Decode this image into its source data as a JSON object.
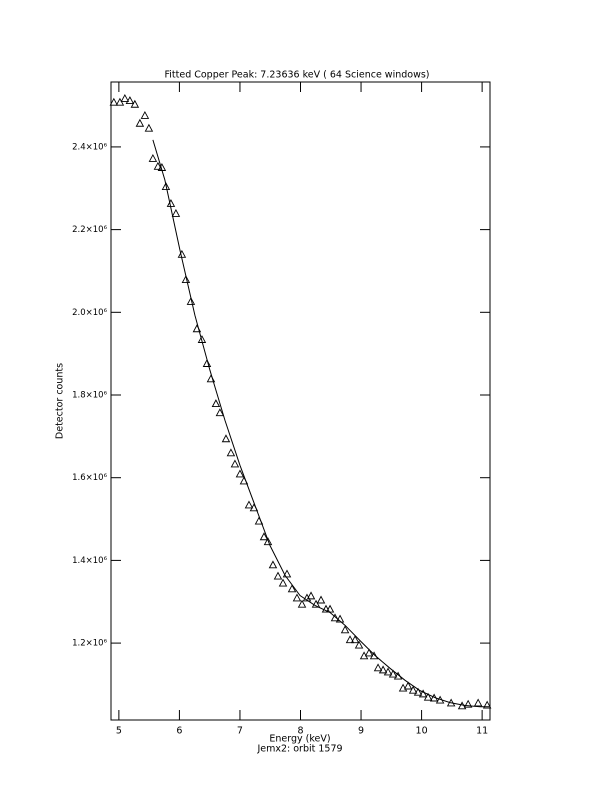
{
  "chart_data": {
    "type": "scatter",
    "title": "Fitted Copper Peak:       7.23636 keV (      64 Science windows)",
    "x_label": "Energy (keV)",
    "subtitle": "Jemx2: orbit 1579",
    "y_label": "Detector counts",
    "xlim": [
      4.87,
      11.13
    ],
    "ylim": [
      1014000,
      2557000
    ],
    "xticks": [
      5,
      6,
      7,
      8,
      9,
      10,
      11
    ],
    "yticks": [
      {
        "value": 1200000,
        "label": "1.2×10⁶"
      },
      {
        "value": 1400000,
        "label": "1.4×10⁶"
      },
      {
        "value": 1600000,
        "label": "1.6×10⁶"
      },
      {
        "value": 1800000,
        "label": "1.8×10⁶"
      },
      {
        "value": 2000000,
        "label": "2.0×10⁶"
      },
      {
        "value": 2200000,
        "label": "2.2×10⁶"
      },
      {
        "value": 2400000,
        "label": "2.4×10⁶"
      }
    ],
    "series": [
      {
        "marker": "triangle",
        "color": "#000000",
        "x": [
          4.917,
          5.017,
          5.099,
          5.182,
          5.264,
          5.347,
          5.43,
          5.496,
          5.562,
          5.645,
          5.711,
          5.777,
          5.86,
          5.942,
          6.041,
          6.107,
          6.19,
          6.289,
          6.372,
          6.455,
          6.521,
          6.603,
          6.669,
          6.769,
          6.851,
          6.917,
          7.0,
          7.066,
          7.149,
          7.231,
          7.314,
          7.397,
          7.463,
          7.545,
          7.628,
          7.711,
          7.777,
          7.86,
          7.942,
          8.025,
          8.107,
          8.174,
          8.256,
          8.339,
          8.421,
          8.488,
          8.57,
          8.653,
          8.736,
          8.818,
          8.901,
          8.967,
          9.05,
          9.132,
          9.215,
          9.281,
          9.364,
          9.446,
          9.529,
          9.612,
          9.694,
          9.777,
          9.86,
          9.942,
          10.025,
          10.107,
          10.207,
          10.306,
          10.488,
          10.669,
          10.769,
          10.934,
          11.083
        ],
        "values": [
          2507000,
          2507000,
          2516000,
          2511000,
          2502000,
          2456000,
          2475000,
          2444000,
          2371000,
          2352000,
          2349000,
          2303000,
          2262000,
          2238000,
          2139000,
          2078000,
          2025000,
          1959000,
          1933000,
          1875000,
          1838000,
          1778000,
          1756000,
          1693000,
          1659000,
          1632000,
          1608000,
          1591000,
          1533000,
          1526000,
          1494000,
          1456000,
          1444000,
          1388000,
          1361000,
          1344000,
          1366000,
          1330000,
          1308000,
          1293000,
          1308000,
          1313000,
          1293000,
          1303000,
          1281000,
          1281000,
          1260000,
          1257000,
          1231000,
          1207000,
          1207000,
          1194000,
          1168000,
          1175000,
          1168000,
          1139000,
          1134000,
          1129000,
          1124000,
          1119000,
          1090000,
          1095000,
          1085000,
          1080000,
          1076000,
          1068000,
          1066000,
          1061000,
          1054000,
          1047000,
          1051000,
          1054000,
          1049000
        ]
      },
      {
        "marker": "line",
        "color": "#000000",
        "x": [
          5.562,
          5.76,
          6.008,
          6.256,
          6.504,
          6.752,
          7.0,
          7.248,
          7.496,
          7.744,
          7.992,
          8.24,
          8.488,
          8.736,
          8.983,
          9.231,
          9.479,
          9.727,
          9.975,
          10.223,
          10.471,
          10.719,
          10.967,
          11.12
        ],
        "values": [
          2417000,
          2320000,
          2151000,
          1993000,
          1860000,
          1739000,
          1630000,
          1533000,
          1436000,
          1364000,
          1315000,
          1291000,
          1274000,
          1243000,
          1206000,
          1170000,
          1139000,
          1110000,
          1085000,
          1068000,
          1056000,
          1049000,
          1046000,
          1046000
        ]
      }
    ]
  }
}
